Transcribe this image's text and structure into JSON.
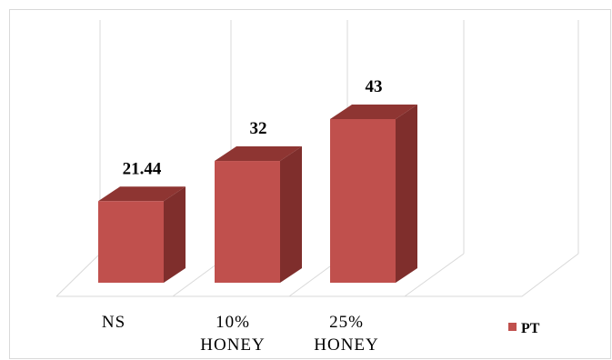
{
  "chart_data": {
    "type": "bar",
    "three_d": true,
    "categories": [
      [
        "NS"
      ],
      [
        "10%",
        "HONEY"
      ],
      [
        "25%",
        "HONEY"
      ]
    ],
    "series": [
      {
        "name": "PT",
        "values": [
          21.44,
          32,
          43
        ],
        "value_labels": [
          "21.44",
          "32",
          "43"
        ]
      }
    ],
    "ylim": [
      0,
      43
    ],
    "grid": false,
    "legend": {
      "position": "right",
      "label": "PT"
    },
    "colors": {
      "front": "#C0504D",
      "side": "#7F2E2C",
      "top": "#8E3532",
      "grid": "#d9d9d9"
    }
  }
}
